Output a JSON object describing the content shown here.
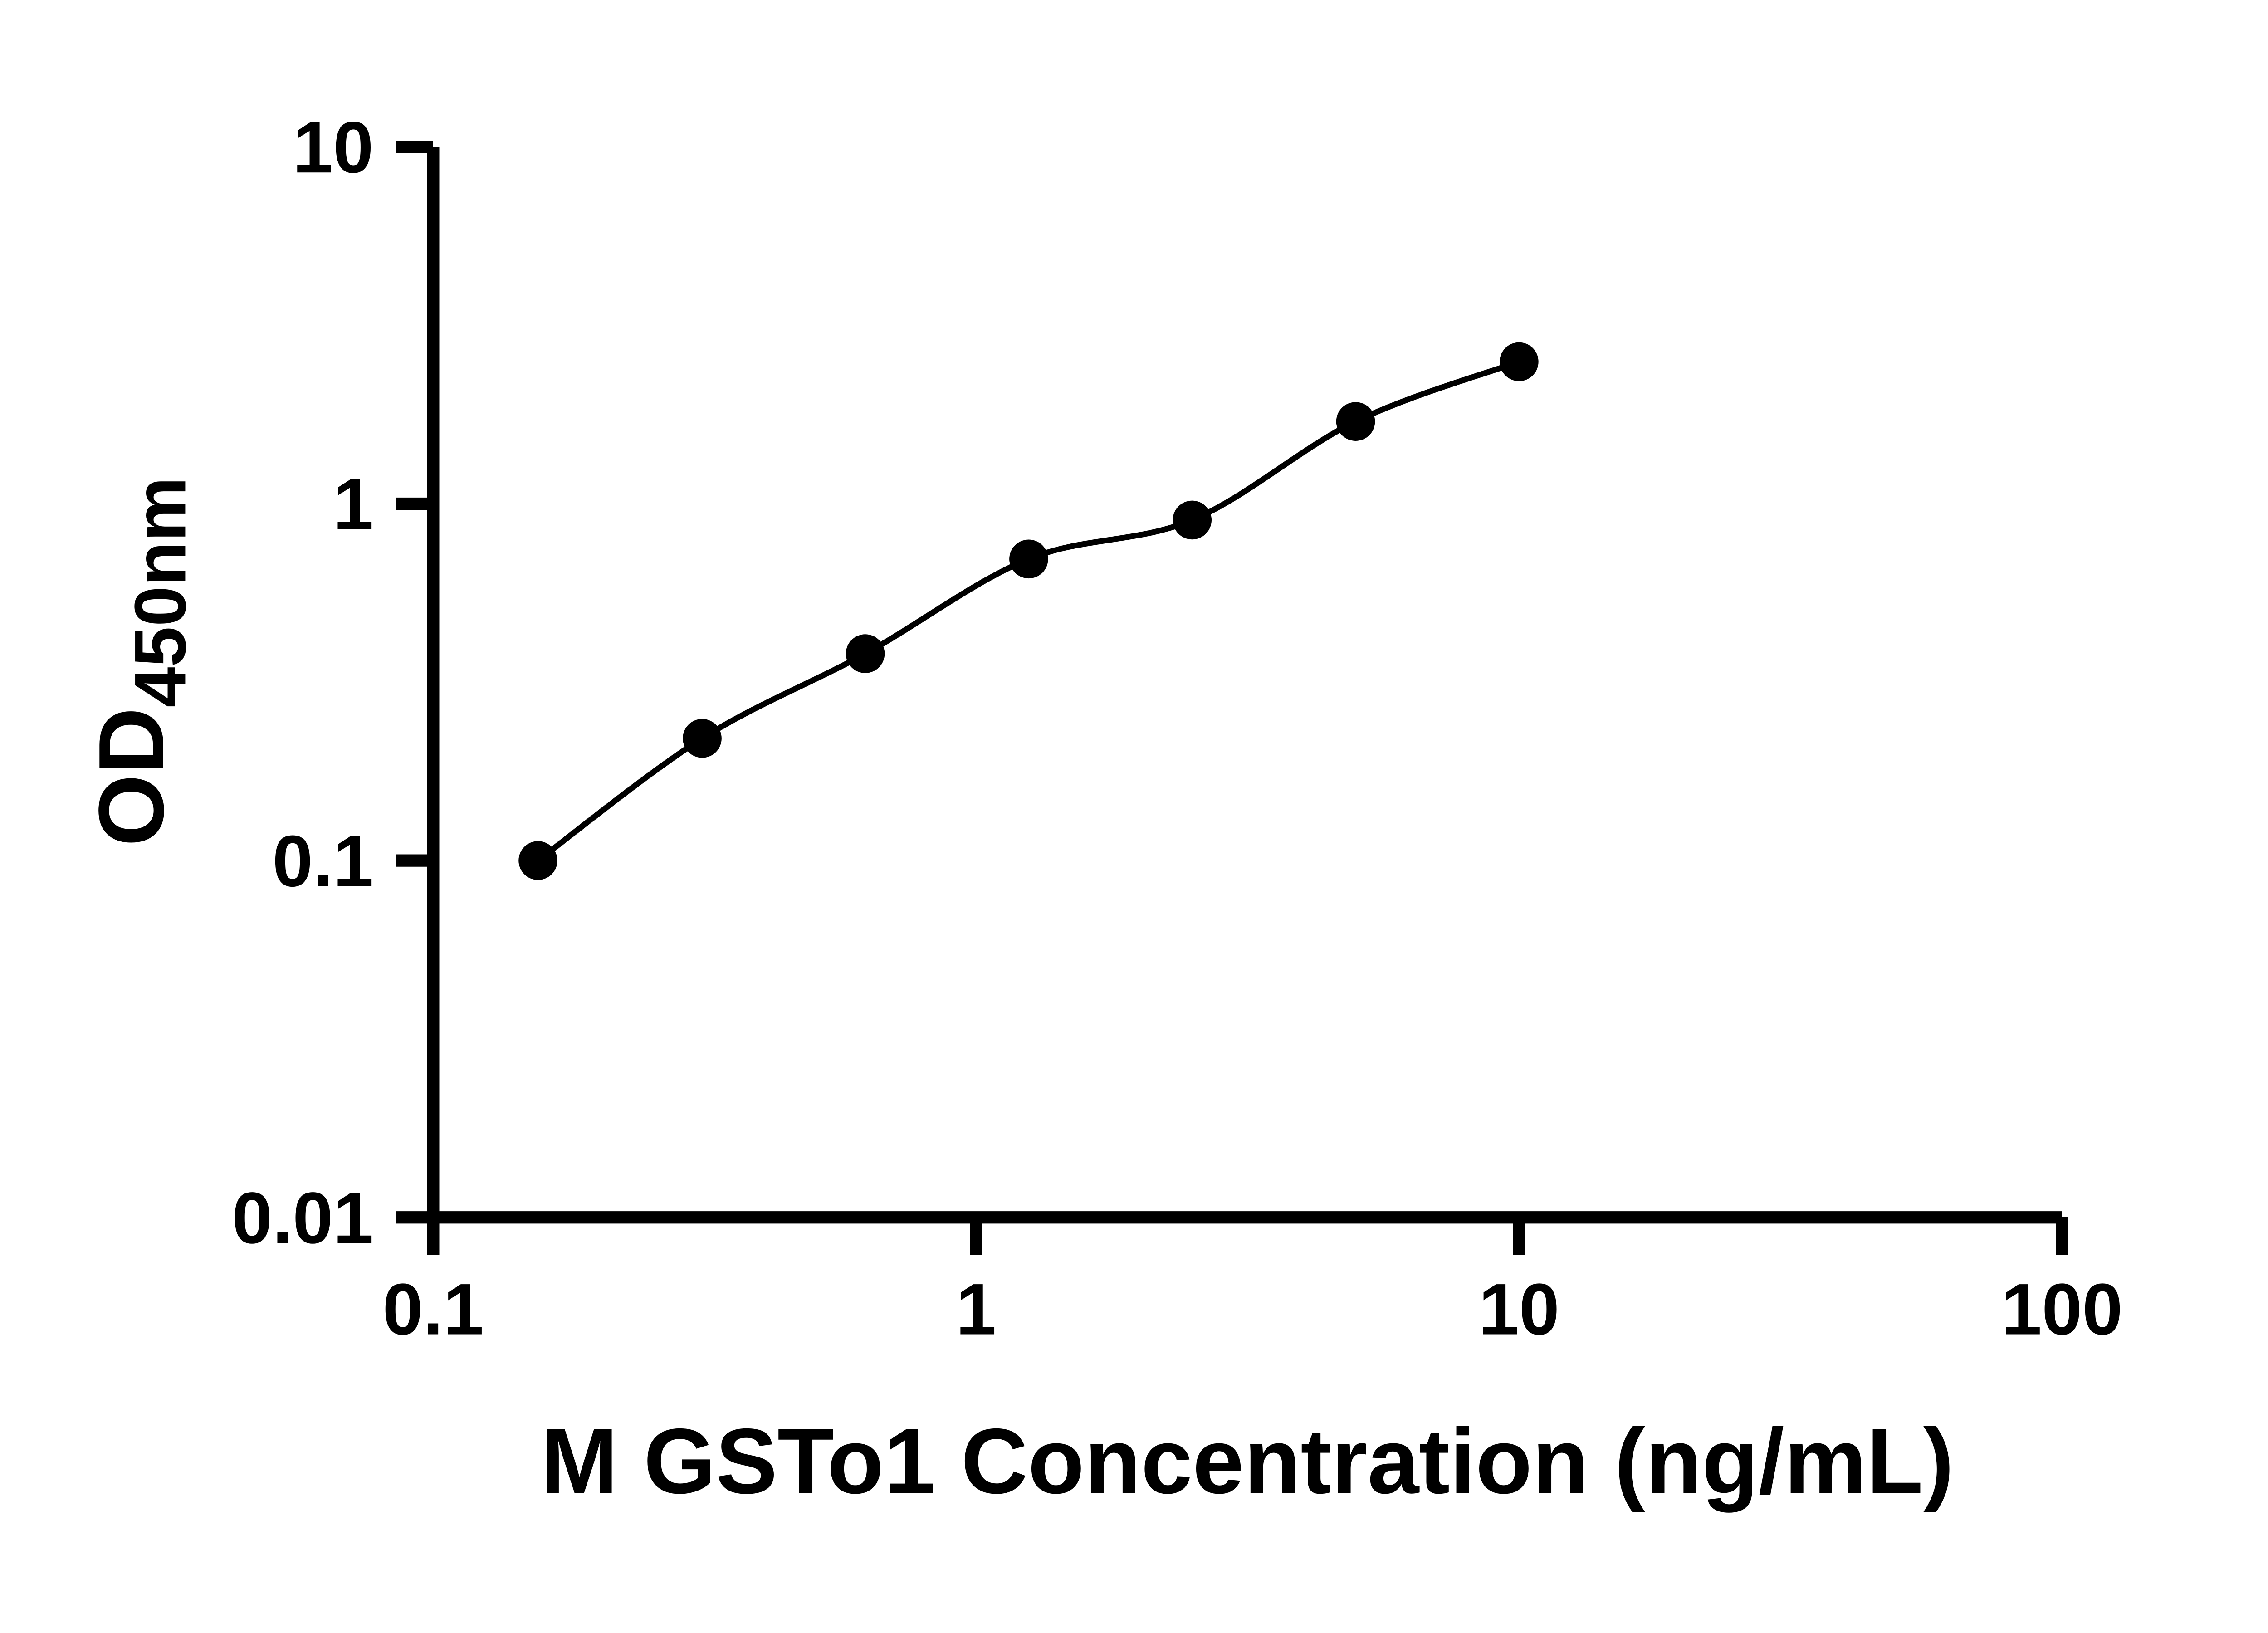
{
  "chart_data": {
    "type": "scatter",
    "x_scale": "log",
    "y_scale": "log",
    "xlabel": "M GSTo1 Concentration (ng/mL)",
    "ylabel_main": "OD",
    "ylabel_sub": "450nm",
    "xlim": [
      0.1,
      100
    ],
    "ylim": [
      0.01,
      10
    ],
    "x_ticks": [
      0.1,
      1,
      10,
      100
    ],
    "y_ticks": [
      0.01,
      0.1,
      1,
      10
    ],
    "grid": false,
    "legend": "none",
    "series": [
      {
        "x": [
          0.156,
          0.313,
          0.625,
          1.25,
          2.5,
          5,
          10
        ],
        "y": [
          0.1,
          0.22,
          0.38,
          0.7,
          0.9,
          1.7,
          2.5
        ],
        "marker": "filled-circle",
        "line": "smooth",
        "color": "#000000"
      }
    ],
    "colors": {
      "axis": "#000000",
      "text": "#000000",
      "background": "#ffffff"
    }
  }
}
